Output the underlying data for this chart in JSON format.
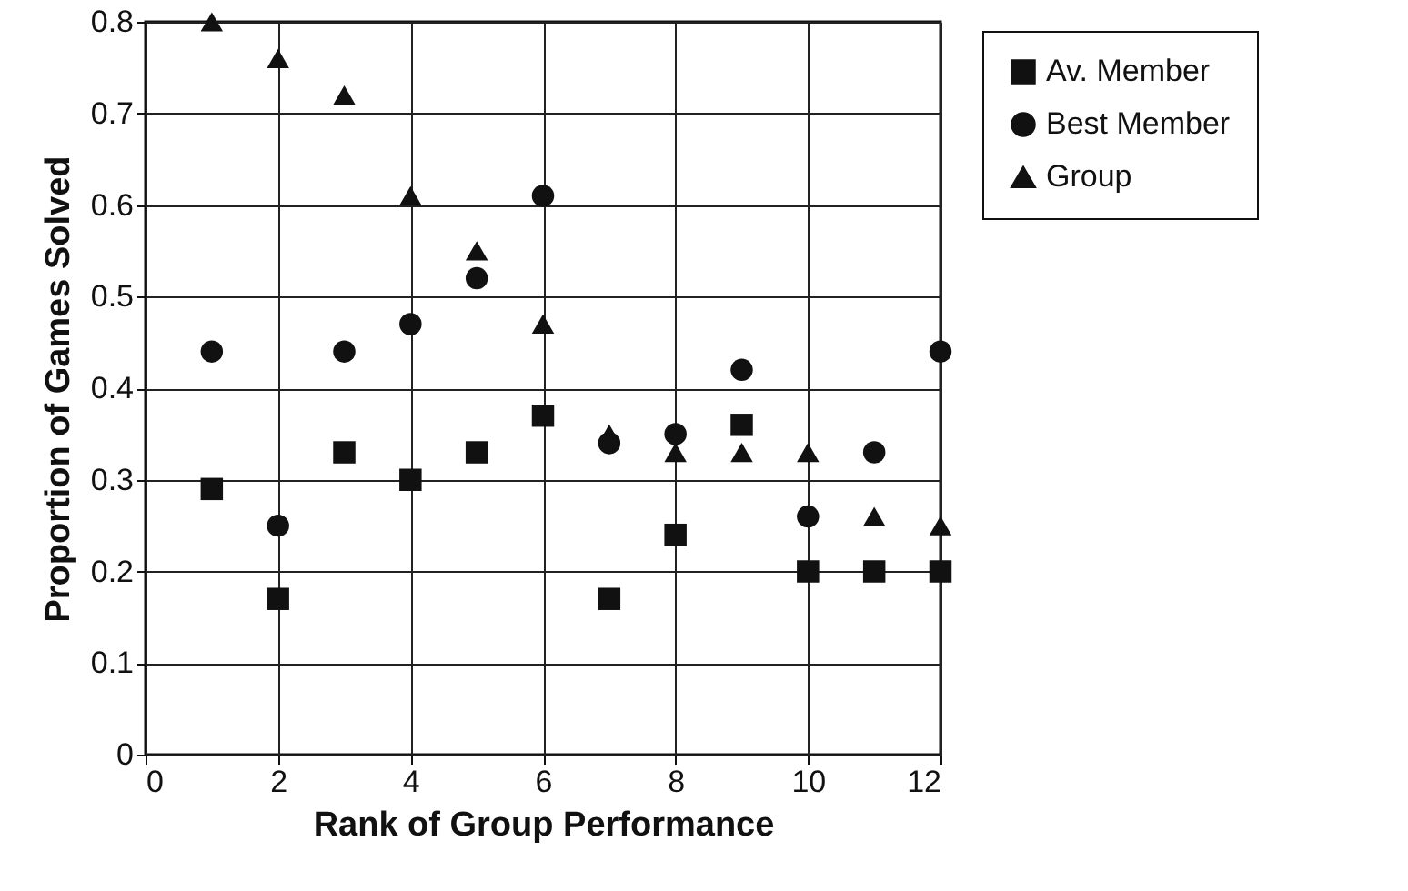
{
  "chart_data": {
    "type": "scatter",
    "xlabel": "Rank of Group Performance",
    "ylabel": "Proportion of Games Solved",
    "x": [
      1,
      2,
      3,
      4,
      5,
      6,
      7,
      8,
      9,
      10,
      11,
      12
    ],
    "series": [
      {
        "name": "Av. Member",
        "color": "#111111",
        "marker": "square",
        "values": [
          0.29,
          0.17,
          0.33,
          0.3,
          0.33,
          0.37,
          0.17,
          0.24,
          0.36,
          0.2,
          0.2,
          0.2
        ]
      },
      {
        "name": "Best Member",
        "color": "#111111",
        "marker": "circle",
        "values": [
          0.44,
          0.25,
          0.44,
          0.47,
          0.52,
          0.61,
          0.34,
          0.35,
          0.42,
          0.26,
          0.33,
          0.44
        ]
      },
      {
        "name": "Group",
        "color": "#111111",
        "marker": "triangle",
        "values": [
          0.8,
          0.76,
          0.72,
          0.61,
          0.55,
          0.47,
          0.35,
          0.33,
          0.33,
          0.33,
          0.26,
          0.25
        ]
      }
    ],
    "xlim": [
      0,
      12
    ],
    "xticks": [
      0,
      2,
      4,
      6,
      8,
      10,
      12
    ],
    "ylim": [
      0,
      0.8
    ],
    "yticks": [
      0,
      0.1,
      0.2,
      0.3,
      0.4,
      0.5,
      0.6,
      0.7,
      0.8
    ],
    "grid": true,
    "legend": "top right"
  }
}
